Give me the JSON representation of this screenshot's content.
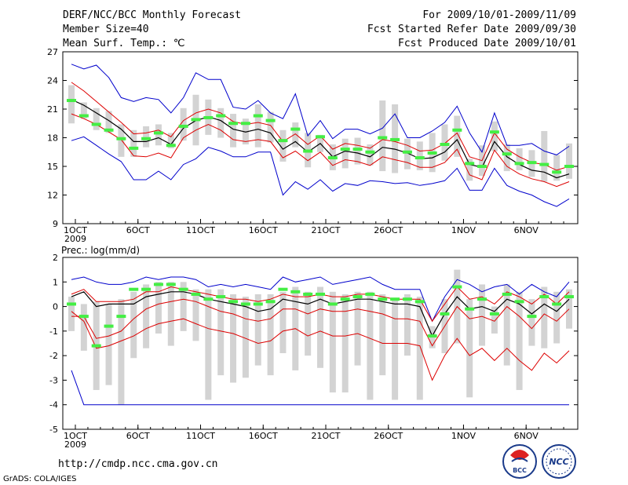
{
  "header": {
    "title": "DERF/NCC/BCC Monthly Forecast",
    "member_size": "Member Size=40",
    "variable": "Mean Surf. Temp.: ℃",
    "period": "For 2009/10/01-2009/11/09",
    "start_date": "Fcst Started Refer Date 2009/09/30",
    "produced_date": "Fcst Produced Date 2009/10/01"
  },
  "footer": {
    "url": "http://cmdp.ncc.cma.gov.cn",
    "credit": "GrADS: COLA/IGES",
    "logo_bcc": "BCC",
    "logo_ncc": "NCC"
  },
  "colors": {
    "box": "#d3d3d3",
    "median": "#44ee44",
    "mean": "#000000",
    "spread": "#dd0000",
    "range": "#0000cc"
  },
  "chart_data": [
    {
      "type": "box-ensemble",
      "name": "temperature",
      "title": "Mean Surf. Temp.: ℃",
      "ylim": [
        9,
        27
      ],
      "yticks": [
        9,
        12,
        15,
        18,
        21,
        24,
        27
      ],
      "xticks": [
        {
          "day": 0,
          "label": "1OCT",
          "sub": "2009"
        },
        {
          "day": 5,
          "label": "6OCT"
        },
        {
          "day": 10,
          "label": "11OCT"
        },
        {
          "day": 15,
          "label": "16OCT"
        },
        {
          "day": 20,
          "label": "21OCT"
        },
        {
          "day": 25,
          "label": "26OCT"
        },
        {
          "day": 31,
          "label": "1NOV"
        },
        {
          "day": 36,
          "label": "6NOV"
        }
      ],
      "series": {
        "mean": [
          22.0,
          21.4,
          20.6,
          19.8,
          18.9,
          17.6,
          17.6,
          18.0,
          17.3,
          19.0,
          19.8,
          20.2,
          19.8,
          18.9,
          18.6,
          18.9,
          18.5,
          16.8,
          17.6,
          16.5,
          17.4,
          16.0,
          16.6,
          16.4,
          16.0,
          17.0,
          16.8,
          16.4,
          15.8,
          15.9,
          16.5,
          17.8,
          15.2,
          14.9,
          17.6,
          16.0,
          15.2,
          14.6,
          14.4,
          13.8,
          14.2
        ],
        "upper_sd": [
          23.8,
          22.9,
          21.8,
          20.7,
          19.6,
          18.4,
          18.5,
          18.8,
          18.1,
          19.8,
          20.6,
          21.0,
          20.6,
          19.7,
          19.4,
          19.6,
          19.3,
          17.6,
          18.4,
          17.3,
          18.2,
          16.8,
          17.4,
          17.2,
          16.9,
          17.8,
          17.6,
          17.2,
          16.6,
          16.7,
          17.4,
          18.5,
          16.0,
          15.6,
          18.5,
          16.8,
          16.0,
          15.4,
          15.2,
          14.6,
          15.0
        ],
        "lower_sd": [
          20.5,
          20.0,
          19.4,
          18.6,
          17.8,
          16.1,
          16.0,
          16.4,
          15.9,
          18.0,
          18.8,
          19.4,
          18.8,
          17.8,
          17.6,
          17.8,
          17.6,
          15.9,
          16.6,
          15.6,
          16.5,
          15.1,
          15.7,
          15.5,
          15.1,
          16.0,
          15.7,
          15.4,
          14.9,
          14.9,
          15.4,
          16.8,
          14.1,
          13.6,
          16.7,
          15.0,
          14.2,
          13.7,
          13.4,
          12.9,
          13.4
        ],
        "max": [
          25.7,
          25.2,
          25.6,
          24.3,
          22.2,
          21.8,
          22.2,
          22.0,
          20.6,
          22.2,
          24.8,
          24.1,
          24.1,
          21.2,
          21.0,
          21.9,
          20.6,
          20.0,
          22.6,
          18.2,
          19.8,
          17.9,
          18.9,
          18.9,
          18.4,
          19.0,
          20.5,
          18.0,
          18.0,
          18.7,
          19.6,
          21.3,
          18.5,
          16.5,
          20.6,
          17.2,
          17.2,
          17.4,
          16.6,
          16.2,
          17.1
        ],
        "min": [
          17.7,
          18.1,
          17.2,
          16.3,
          15.5,
          13.6,
          13.6,
          14.5,
          13.6,
          15.2,
          15.8,
          17.0,
          16.6,
          16.0,
          16.0,
          16.5,
          16.5,
          12.0,
          13.4,
          12.6,
          13.6,
          12.4,
          13.2,
          13.0,
          13.5,
          13.4,
          13.2,
          13.3,
          13.0,
          13.2,
          13.5,
          14.8,
          12.5,
          12.5,
          14.8,
          13.0,
          12.4,
          12.0,
          11.3,
          10.8,
          11.6
        ],
        "median": [
          21.9,
          20.3,
          19.4,
          18.8,
          17.9,
          16.9,
          17.9,
          18.5,
          17.2,
          19.2,
          19.9,
          20.1,
          20.3,
          19.5,
          19.5,
          20.3,
          19.8,
          17.7,
          18.9,
          16.6,
          18.1,
          15.9,
          16.8,
          16.8,
          16.5,
          18.0,
          17.8,
          16.5,
          15.9,
          16.4,
          17.3,
          18.8,
          15.3,
          15.0,
          18.6,
          16.3,
          15.3,
          15.4,
          15.2,
          14.4,
          15.0
        ],
        "box_hi": [
          23.5,
          21.7,
          21.1,
          20.8,
          19.4,
          18.8,
          19.2,
          19.4,
          18.5,
          21.1,
          22.5,
          22.0,
          21.1,
          20.5,
          20.0,
          21.5,
          20.7,
          18.8,
          19.6,
          18.5,
          18.3,
          17.3,
          17.9,
          18.0,
          17.3,
          21.9,
          21.5,
          17.9,
          17.6,
          18.5,
          19.4,
          20.3,
          15.8,
          17.2,
          19.7,
          17.3,
          16.9,
          16.7,
          18.7,
          16.2,
          17.4
        ],
        "box_lo": [
          19.5,
          20.0,
          18.8,
          18.5,
          16.0,
          16.0,
          17.0,
          17.2,
          16.9,
          17.7,
          17.2,
          18.3,
          18.0,
          17.0,
          17.3,
          17.0,
          17.5,
          15.5,
          17.0,
          14.9,
          16.5,
          14.6,
          14.8,
          15.2,
          15.1,
          14.5,
          14.3,
          14.7,
          14.6,
          14.4,
          15.6,
          16.0,
          13.5,
          14.0,
          16.6,
          14.5,
          14.6,
          13.9,
          13.4,
          13.5,
          13.7
        ]
      }
    },
    {
      "type": "box-ensemble",
      "name": "precipitation",
      "title": "Prec.: log(mm/d)",
      "ylim": [
        -5,
        2
      ],
      "yticks": [
        -5,
        -4,
        -3,
        -2,
        -1,
        0,
        1,
        2
      ],
      "xticks": [
        {
          "day": 0,
          "label": "1OCT",
          "sub": "2009"
        },
        {
          "day": 5,
          "label": "6OCT"
        },
        {
          "day": 10,
          "label": "11OCT"
        },
        {
          "day": 15,
          "label": "16OCT"
        },
        {
          "day": 20,
          "label": "21OCT"
        },
        {
          "day": 25,
          "label": "26OCT"
        },
        {
          "day": 31,
          "label": "1NOV"
        },
        {
          "day": 36,
          "label": "6NOV"
        }
      ],
      "series": {
        "mean": [
          0.4,
          0.6,
          0.0,
          0.1,
          0.1,
          0.1,
          0.4,
          0.5,
          0.6,
          0.6,
          0.5,
          0.3,
          0.2,
          0.1,
          0.0,
          -0.2,
          -0.1,
          0.3,
          0.2,
          0.1,
          0.3,
          0.1,
          0.2,
          0.3,
          0.3,
          0.2,
          0.1,
          0.1,
          0.0,
          -1.2,
          -0.3,
          0.4,
          -0.1,
          0.0,
          -0.2,
          0.3,
          0.1,
          -0.3,
          0.1,
          -0.2,
          0.3
        ],
        "upper_sd": [
          0.5,
          0.7,
          0.2,
          0.2,
          0.2,
          0.3,
          0.6,
          0.6,
          0.8,
          0.7,
          0.6,
          0.5,
          0.4,
          0.3,
          0.3,
          0.2,
          0.3,
          0.5,
          0.4,
          0.4,
          0.5,
          0.4,
          0.4,
          0.5,
          0.5,
          0.4,
          0.3,
          0.3,
          0.3,
          -0.6,
          0.1,
          0.8,
          0.3,
          0.4,
          0.1,
          0.6,
          0.4,
          0.1,
          0.5,
          0.1,
          0.6
        ],
        "lower_sd": [
          -0.4,
          -0.4,
          -1.3,
          -1.2,
          -1.0,
          -0.5,
          -0.1,
          0.1,
          0.2,
          0.3,
          0.2,
          0.0,
          -0.2,
          -0.3,
          -0.5,
          -0.6,
          -0.5,
          -0.1,
          -0.1,
          -0.3,
          -0.1,
          -0.2,
          -0.2,
          -0.1,
          -0.2,
          -0.3,
          -0.5,
          -0.5,
          -0.6,
          -1.6,
          -0.8,
          0.0,
          -0.5,
          -0.4,
          -0.6,
          0.0,
          -0.4,
          -0.9,
          -0.3,
          -0.6,
          -0.1
        ],
        "lowest": [
          -0.2,
          -0.6,
          -1.7,
          -1.6,
          -1.4,
          -1.2,
          -0.9,
          -0.7,
          -0.6,
          -0.5,
          -0.7,
          -0.9,
          -1.0,
          -1.1,
          -1.3,
          -1.5,
          -1.4,
          -1.0,
          -0.9,
          -1.2,
          -1.0,
          -1.2,
          -1.2,
          -1.1,
          -1.3,
          -1.5,
          -1.5,
          -1.5,
          -1.6,
          -3.0,
          -2.0,
          -1.3,
          -2.0,
          -1.7,
          -2.2,
          -1.7,
          -2.2,
          -2.6,
          -1.9,
          -2.3,
          -1.8
        ],
        "max": [
          1.1,
          1.2,
          1.0,
          0.9,
          0.9,
          1.0,
          1.2,
          1.1,
          1.2,
          1.2,
          1.1,
          0.8,
          0.9,
          0.8,
          0.9,
          0.8,
          0.7,
          1.2,
          1.0,
          1.1,
          1.2,
          0.9,
          1.0,
          1.1,
          1.2,
          0.9,
          0.7,
          0.7,
          0.7,
          -0.6,
          0.4,
          1.1,
          0.9,
          0.6,
          0.8,
          0.9,
          0.5,
          0.9,
          0.6,
          0.4,
          1.0
        ],
        "min": [
          -2.6,
          -4.0,
          -4.0,
          -4.0,
          -4.0,
          -4.0,
          -4.0,
          -4.0,
          -4.0,
          -4.0,
          -4.0,
          -4.0,
          -4.0,
          -4.0,
          -4.0,
          -4.0,
          -4.0,
          -4.0,
          -4.0,
          -4.0,
          -4.0,
          -4.0,
          -4.0,
          -4.0,
          -4.0,
          -4.0,
          -4.0,
          -4.0,
          -4.0,
          -4.0,
          -4.0,
          -4.0,
          -4.0,
          -4.0,
          -4.0,
          -4.0,
          -4.0,
          -4.0,
          -4.0,
          -4.0,
          -4.0
        ],
        "median": [
          0.1,
          -0.4,
          -1.6,
          -0.8,
          -0.4,
          0.7,
          0.7,
          0.9,
          0.9,
          0.7,
          0.5,
          0.3,
          0.4,
          0.2,
          0.1,
          0.1,
          0.2,
          0.7,
          0.6,
          0.5,
          0.5,
          0.1,
          0.3,
          0.4,
          0.5,
          0.3,
          0.3,
          0.3,
          0.2,
          -1.2,
          -0.3,
          0.8,
          -0.1,
          0.3,
          -0.3,
          0.5,
          0.2,
          -0.4,
          0.4,
          0.1,
          0.4
        ],
        "box_hi": [
          0.4,
          0.1,
          0.2,
          0.1,
          0.3,
          0.6,
          0.9,
          1.0,
          1.0,
          1.0,
          0.7,
          0.7,
          0.7,
          0.5,
          0.4,
          0.5,
          0.5,
          0.6,
          0.8,
          0.6,
          0.8,
          0.6,
          0.5,
          0.6,
          0.6,
          0.5,
          0.3,
          0.5,
          0.4,
          -0.8,
          0.3,
          1.5,
          0.3,
          0.9,
          0.0,
          0.9,
          0.6,
          0.3,
          0.8,
          0.6,
          0.7
        ],
        "box_lo": [
          -1.0,
          -1.8,
          -3.4,
          -3.2,
          -4.0,
          -2.1,
          -1.7,
          -1.1,
          -1.6,
          -1.0,
          -1.4,
          -3.8,
          -2.8,
          -3.1,
          -2.9,
          -2.4,
          -2.8,
          -1.9,
          -2.6,
          -2.0,
          -2.5,
          -3.5,
          -3.5,
          -2.4,
          -3.8,
          -2.8,
          -3.8,
          -2.0,
          -3.8,
          -1.7,
          -1.9,
          -1.5,
          -3.7,
          -1.6,
          -1.1,
          -2.4,
          -3.4,
          -1.6,
          -1.7,
          -1.5,
          -0.9
        ]
      }
    }
  ]
}
